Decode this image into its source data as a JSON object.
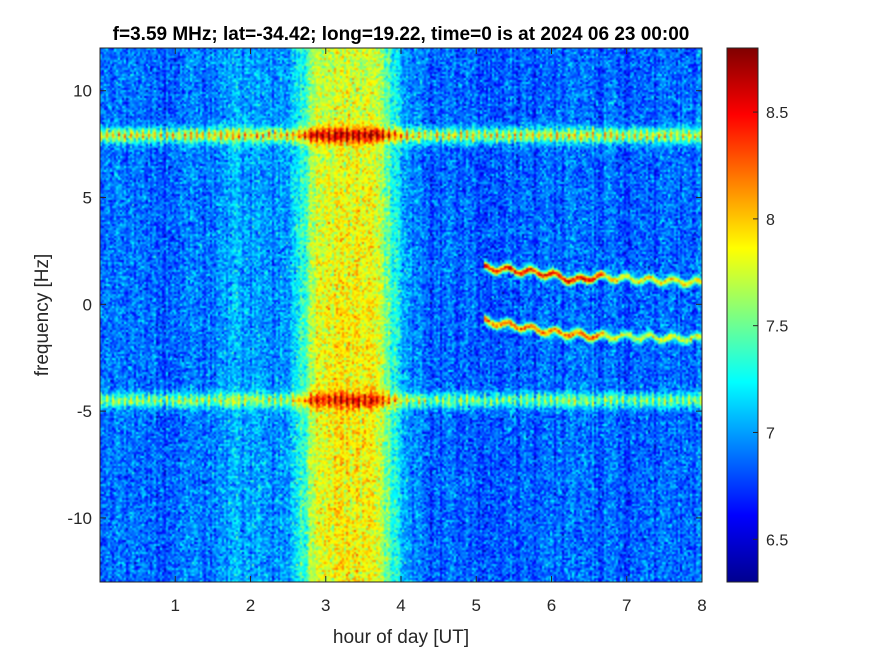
{
  "chart_data": {
    "type": "heatmap",
    "title": "f=3.59 MHz;  lat=-34.42; long=19.22, time=0 is at 2024 06 23 00:00",
    "xlabel": "hour of day [UT]",
    "ylabel": "frequency [Hz]",
    "xlim": [
      0,
      8
    ],
    "ylim": [
      -13,
      12
    ],
    "xticks": [
      "1",
      "2",
      "3",
      "4",
      "5",
      "6",
      "7",
      "8"
    ],
    "yticks": [
      "10",
      "5",
      "0",
      "-5",
      "-10"
    ],
    "xtick_values": [
      1,
      2,
      3,
      4,
      5,
      6,
      7,
      8
    ],
    "ytick_values": [
      10,
      5,
      0,
      -5,
      -10
    ],
    "colorbar": {
      "range": [
        6.3,
        8.8
      ],
      "ticks": [
        "8.5",
        "8",
        "7.5",
        "7",
        "6.5"
      ],
      "tick_values": [
        8.5,
        8,
        7.5,
        7,
        6.5
      ],
      "colormap": "jet"
    },
    "features": {
      "background_level": 6.9,
      "broadband_enhancement": {
        "x_range": [
          2.4,
          3.9
        ],
        "peak_x": 3.3,
        "peak_level": 7.9
      },
      "horizontal_lines": [
        {
          "y": 7.9,
          "level": 8.1
        },
        {
          "y": -4.5,
          "level": 7.8
        }
      ],
      "doppler_traces": [
        {
          "x": [
            5.1,
            5.5,
            6.0,
            6.3,
            6.6,
            7.0,
            7.5,
            8.0
          ],
          "y": [
            1.7,
            1.6,
            1.4,
            1.1,
            1.3,
            1.2,
            1.1,
            1.0
          ],
          "level": 8.5
        },
        {
          "x": [
            5.1,
            5.5,
            6.0,
            6.3,
            6.6,
            7.0,
            7.5,
            8.0
          ],
          "y": [
            -0.8,
            -1.0,
            -1.3,
            -1.4,
            -1.5,
            -1.5,
            -1.6,
            -1.6
          ],
          "level": 8.3
        }
      ]
    }
  }
}
